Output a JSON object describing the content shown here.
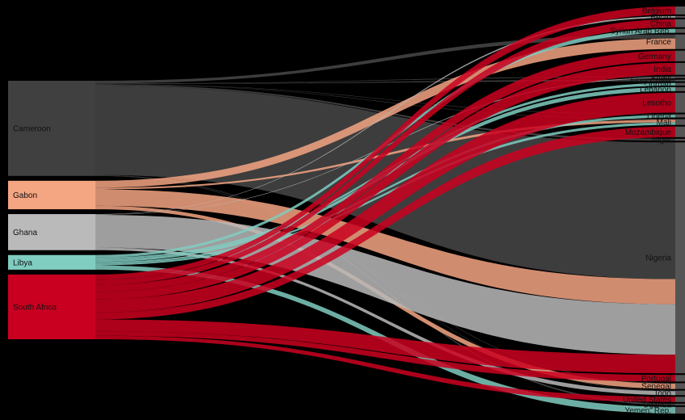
{
  "chart_data": {
    "type": "sankey",
    "sources": [
      {
        "name": "Cameroon",
        "color": "#404040"
      },
      {
        "name": "Gabon",
        "color": "#F4A582"
      },
      {
        "name": "Ghana",
        "color": "#BABABA"
      },
      {
        "name": "Libya",
        "color": "#80CDC1"
      },
      {
        "name": "South Africa",
        "color": "#CA0020"
      }
    ],
    "targets": [
      {
        "name": "Belgium"
      },
      {
        "name": "Benin"
      },
      {
        "name": "China"
      },
      {
        "name": "Syrian Arab Rep."
      },
      {
        "name": "France"
      },
      {
        "name": "Germany"
      },
      {
        "name": "India"
      },
      {
        "name": "Italy"
      },
      {
        "name": "Ivory Coast"
      },
      {
        "name": "Jordan"
      },
      {
        "name": "Lebanon"
      },
      {
        "name": "Lesotho"
      },
      {
        "name": "Liberia"
      },
      {
        "name": "Mali"
      },
      {
        "name": "Mozambique"
      },
      {
        "name": "Niger"
      },
      {
        "name": "Nigeria"
      },
      {
        "name": "Portugal"
      },
      {
        "name": "Senegal"
      },
      {
        "name": "Togo"
      },
      {
        "name": "United States"
      },
      {
        "name": "Uganda"
      },
      {
        "name": "Yemen, Rep."
      }
    ],
    "links": [
      {
        "source": "Cameroon",
        "target": "France",
        "value": 3
      },
      {
        "source": "Cameroon",
        "target": "Italy",
        "value": 0.4
      },
      {
        "source": "Cameroon",
        "target": "Ivory Coast",
        "value": 0.4
      },
      {
        "source": "Cameroon",
        "target": "Liberia",
        "value": 0.4
      },
      {
        "source": "Cameroon",
        "target": "Mali",
        "value": 0.4
      },
      {
        "source": "Cameroon",
        "target": "Niger",
        "value": 1.5
      },
      {
        "source": "Cameroon",
        "target": "Nigeria",
        "value": 103
      },
      {
        "source": "Cameroon",
        "target": "Senegal",
        "value": 0.4
      },
      {
        "source": "Cameroon",
        "target": "Togo",
        "value": 0.4
      },
      {
        "source": "Cameroon",
        "target": "Uganda",
        "value": 0.4
      },
      {
        "source": "Gabon",
        "target": "France",
        "value": 8
      },
      {
        "source": "Gabon",
        "target": "Mali",
        "value": 2
      },
      {
        "source": "Gabon",
        "target": "Nigeria",
        "value": 19
      },
      {
        "source": "Gabon",
        "target": "Senegal",
        "value": 4
      },
      {
        "source": "Ghana",
        "target": "Benin",
        "value": 0.4
      },
      {
        "source": "Ghana",
        "target": "Italy",
        "value": 0.4
      },
      {
        "source": "Ghana",
        "target": "Nigeria",
        "value": 38
      },
      {
        "source": "Ghana",
        "target": "Togo",
        "value": 3
      },
      {
        "source": "Libya",
        "target": "Syrian Arab Rep.",
        "value": 3
      },
      {
        "source": "Libya",
        "target": "Jordan",
        "value": 2
      },
      {
        "source": "Libya",
        "target": "Lebanon",
        "value": 3
      },
      {
        "source": "Libya",
        "target": "Liberia",
        "value": 2
      },
      {
        "source": "Libya",
        "target": "Mali",
        "value": 2
      },
      {
        "source": "Libya",
        "target": "Yemen, Rep.",
        "value": 5
      },
      {
        "source": "South Africa",
        "target": "Belgium",
        "value": 6
      },
      {
        "source": "South Africa",
        "target": "China",
        "value": 6
      },
      {
        "source": "South Africa",
        "target": "Germany",
        "value": 8
      },
      {
        "source": "South Africa",
        "target": "India",
        "value": 9
      },
      {
        "source": "South Africa",
        "target": "Lesotho",
        "value": 15
      },
      {
        "source": "South Africa",
        "target": "Mozambique",
        "value": 8
      },
      {
        "source": "South Africa",
        "target": "Nigeria",
        "value": 14
      },
      {
        "source": "South Africa",
        "target": "Portugal",
        "value": 5
      },
      {
        "source": "South Africa",
        "target": "United States",
        "value": 4
      }
    ]
  }
}
